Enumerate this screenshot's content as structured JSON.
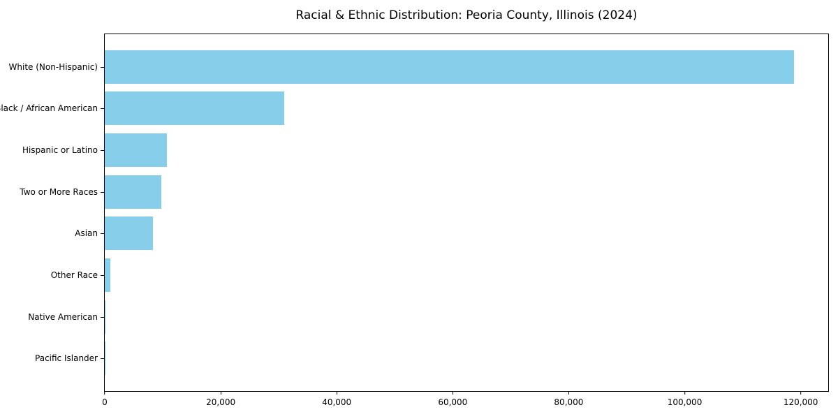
{
  "title": "Racial & Ethnic Distribution: Peoria County, Illinois (2024)",
  "colors": {
    "bar": "#87CEEB",
    "axis": "#000000",
    "background": "#FFFFFF"
  },
  "chart_data": {
    "type": "bar",
    "orientation": "horizontal",
    "title": "Racial & Ethnic Distribution: Peoria County, Illinois (2024)",
    "categories": [
      "White (Non-Hispanic)",
      "Black / African American",
      "Hispanic or Latino",
      "Two or More Races",
      "Asian",
      "Other Race",
      "Native American",
      "Pacific Islander"
    ],
    "values": [
      118800,
      31000,
      10700,
      9750,
      8300,
      950,
      100,
      40
    ],
    "xlabel": "",
    "ylabel": "",
    "xlim": [
      0,
      124740
    ],
    "x_ticks": [
      0,
      20000,
      40000,
      60000,
      80000,
      100000,
      120000
    ],
    "x_tick_labels": [
      "0",
      "20,000",
      "40,000",
      "60,000",
      "80,000",
      "100,000",
      "120,000"
    ],
    "grid": false,
    "legend": false,
    "bar_color": "#87CEEB"
  }
}
